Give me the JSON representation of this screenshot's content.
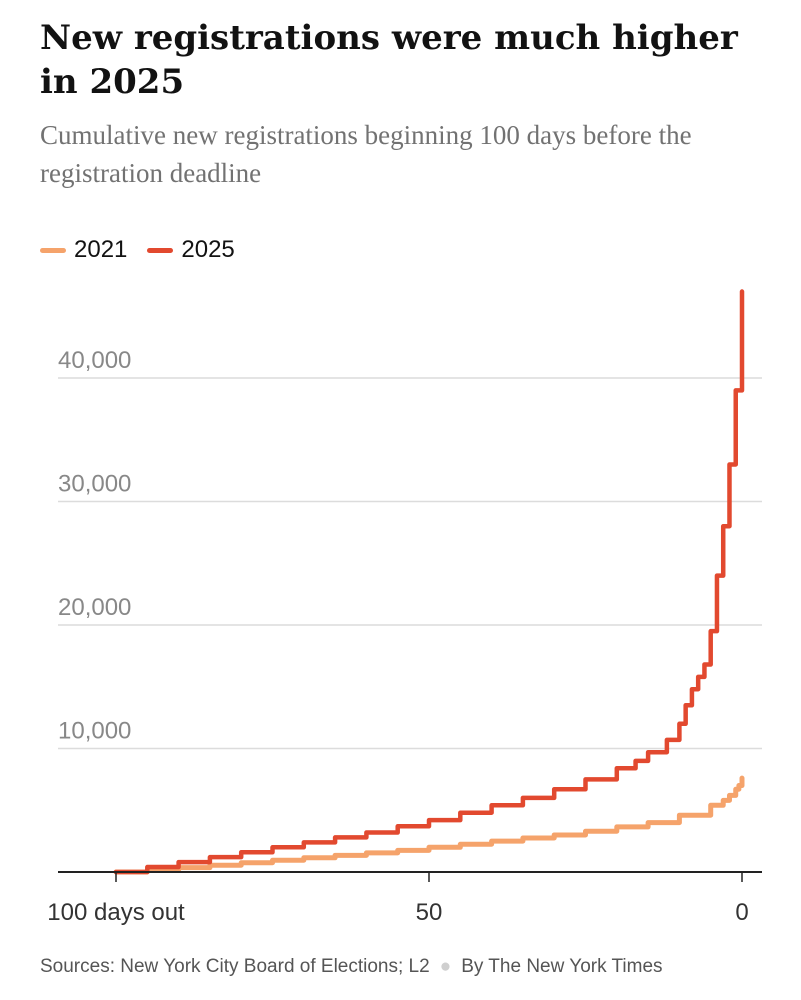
{
  "header": {
    "title": "New registrations were much higher in 2025",
    "subtitle": "Cumulative new registrations beginning 100 days before the registration deadline"
  },
  "chart_data": {
    "type": "line",
    "title": "New registrations were much higher in 2025",
    "subtitle": "Cumulative new registrations beginning 100 days before the registration deadline",
    "xlabel": "",
    "ylabel": "",
    "x_axis": {
      "direction": "days before deadline, decreasing left to right",
      "range": [
        100,
        0
      ],
      "ticks": [
        100,
        50,
        0
      ],
      "tick_labels": [
        "100 days out",
        "50",
        "0"
      ]
    },
    "y_axis": {
      "range": [
        0,
        47000
      ],
      "ticks": [
        10000,
        20000,
        30000,
        40000
      ],
      "tick_labels": [
        "10,000",
        "20,000",
        "30,000",
        "40,000"
      ],
      "grid": true
    },
    "legend": {
      "position": "top-left"
    },
    "series": [
      {
        "name": "2021",
        "color": "#f5a36b",
        "points": [
          [
            100,
            0
          ],
          [
            95,
            150
          ],
          [
            90,
            350
          ],
          [
            85,
            550
          ],
          [
            80,
            750
          ],
          [
            75,
            950
          ],
          [
            70,
            1150
          ],
          [
            65,
            1350
          ],
          [
            60,
            1550
          ],
          [
            55,
            1750
          ],
          [
            50,
            2000
          ],
          [
            45,
            2250
          ],
          [
            40,
            2500
          ],
          [
            35,
            2750
          ],
          [
            30,
            3000
          ],
          [
            25,
            3300
          ],
          [
            20,
            3650
          ],
          [
            15,
            4000
          ],
          [
            10,
            4600
          ],
          [
            5,
            5400
          ],
          [
            3,
            5800
          ],
          [
            2,
            6200
          ],
          [
            1,
            6700
          ],
          [
            0.5,
            7000
          ],
          [
            0,
            7600
          ]
        ]
      },
      {
        "name": "2025",
        "color": "#e2492f",
        "points": [
          [
            100,
            0
          ],
          [
            95,
            400
          ],
          [
            90,
            800
          ],
          [
            85,
            1200
          ],
          [
            80,
            1600
          ],
          [
            75,
            2000
          ],
          [
            70,
            2400
          ],
          [
            65,
            2800
          ],
          [
            60,
            3200
          ],
          [
            55,
            3700
          ],
          [
            50,
            4200
          ],
          [
            45,
            4800
          ],
          [
            40,
            5400
          ],
          [
            35,
            6000
          ],
          [
            30,
            6700
          ],
          [
            25,
            7500
          ],
          [
            20,
            8400
          ],
          [
            17,
            9000
          ],
          [
            15,
            9700
          ],
          [
            12,
            10700
          ],
          [
            10,
            12000
          ],
          [
            9,
            13500
          ],
          [
            8,
            14800
          ],
          [
            7,
            15800
          ],
          [
            6,
            16800
          ],
          [
            5,
            19500
          ],
          [
            4,
            24000
          ],
          [
            3,
            28000
          ],
          [
            2,
            33000
          ],
          [
            1,
            39000
          ],
          [
            0.3,
            39000
          ],
          [
            0,
            47000
          ]
        ]
      }
    ]
  },
  "footer": {
    "source": "Sources: New York City Board of Elections; L2",
    "byline": "By The New York Times"
  }
}
